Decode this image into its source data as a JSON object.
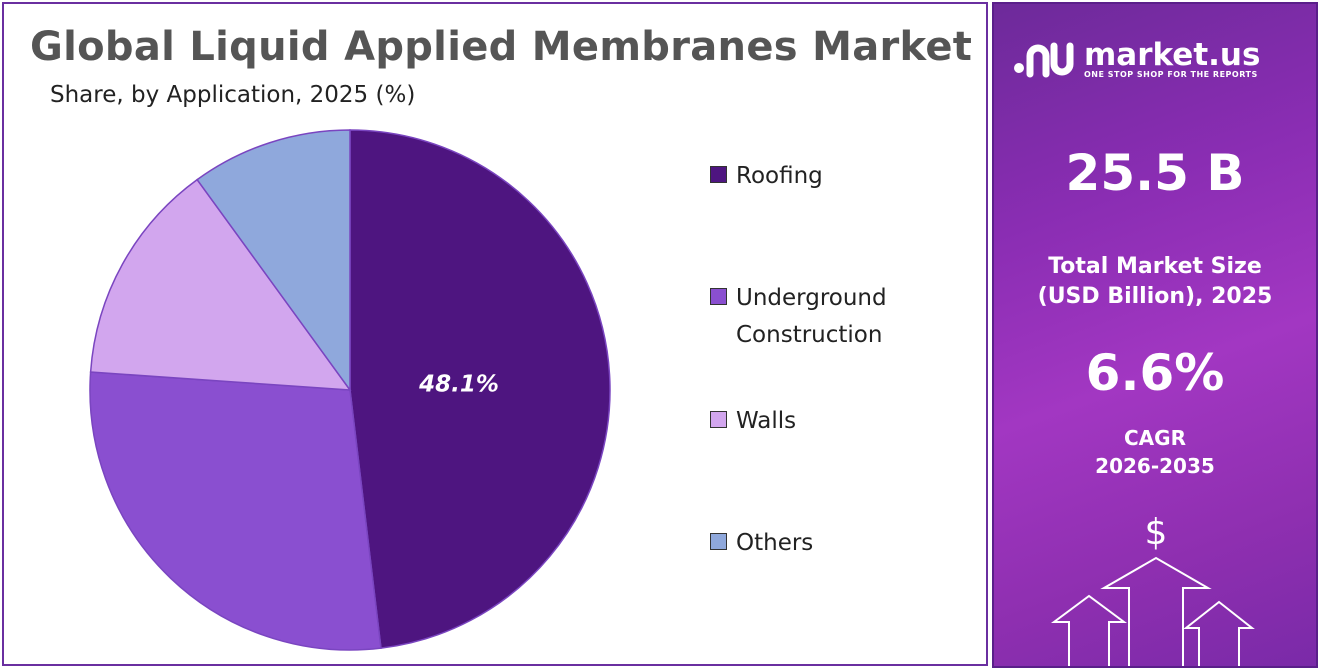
{
  "title": "Global Liquid Applied Membranes Market",
  "subtitle": "Share, by Application, 2025 (%)",
  "chart_data": {
    "type": "pie",
    "categories": [
      "Roofing",
      "Underground Construction",
      "Walls",
      "Others"
    ],
    "values": [
      48.1,
      28.0,
      13.9,
      10.0
    ],
    "data_labels": [
      "48.1%",
      null,
      null,
      null
    ],
    "colors": [
      "#4e1580",
      "#8a4fd0",
      "#d2a6ee",
      "#8fa8dc"
    ],
    "legend_position": "right"
  },
  "legend": {
    "items": [
      {
        "lines": [
          "Roofing"
        ],
        "color": "#4e1580"
      },
      {
        "lines": [
          "Underground",
          "Construction"
        ],
        "color": "#8a4fd0"
      },
      {
        "lines": [
          "Walls"
        ],
        "color": "#d2a6ee"
      },
      {
        "lines": [
          "Others"
        ],
        "color": "#8fa8dc"
      }
    ]
  },
  "brand": {
    "name": "market.us",
    "tagline": "ONE STOP SHOP FOR THE REPORTS"
  },
  "stats": {
    "market_size_value": "25.5 B",
    "market_size_label_1": "Total Market Size",
    "market_size_label_2": "(USD Billion), 2025",
    "cagr_value": "6.6%",
    "cagr_label_1": "CAGR",
    "cagr_label_2": "2026-2035",
    "currency_symbol": "$"
  }
}
